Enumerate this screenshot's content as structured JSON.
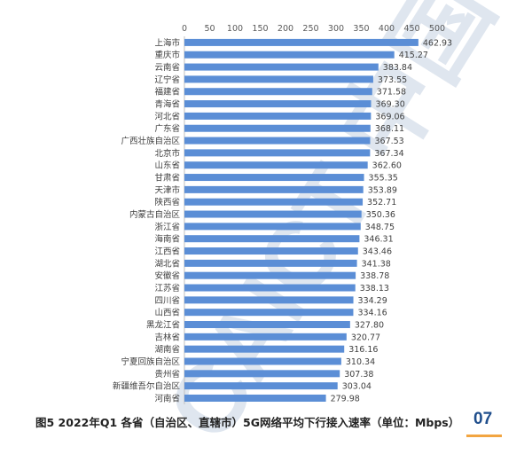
{
  "chart_data": {
    "type": "bar",
    "orientation": "horizontal",
    "categories": [
      "上海市",
      "重庆市",
      "云南省",
      "辽宁省",
      "福建省",
      "青海省",
      "河北省",
      "广东省",
      "广西壮族自治区",
      "北京市",
      "山东省",
      "甘肃省",
      "天津市",
      "陕西省",
      "内蒙古自治区",
      "浙江省",
      "海南省",
      "江西省",
      "湖北省",
      "安徽省",
      "江苏省",
      "四川省",
      "山西省",
      "黑龙江省",
      "吉林省",
      "湖南省",
      "宁夏回族自治区",
      "贵州省",
      "新疆维吾尔自治区",
      "河南省"
    ],
    "values": [
      462.93,
      415.27,
      383.84,
      373.55,
      371.58,
      369.3,
      369.06,
      368.11,
      367.53,
      367.34,
      362.6,
      355.35,
      353.89,
      352.71,
      350.36,
      348.75,
      346.31,
      343.46,
      341.38,
      338.78,
      338.13,
      334.29,
      334.16,
      327.8,
      320.77,
      316.16,
      310.34,
      307.38,
      303.04,
      279.98
    ],
    "value_labels": [
      "462.93",
      "415.27",
      "383.84",
      "373.55",
      "371.58",
      "369.30",
      "369.06",
      "368.11",
      "367.53",
      "367.34",
      "362.60",
      "355.35",
      "353.89",
      "352.71",
      "350.36",
      "348.75",
      "346.31",
      "343.46",
      "341.38",
      "338.78",
      "338.13",
      "334.29",
      "334.16",
      "327.80",
      "320.77",
      "316.16",
      "310.34",
      "307.38",
      "303.04",
      "279.98"
    ],
    "xlim": [
      0,
      500
    ],
    "x_ticks": [
      "0",
      "50",
      "100",
      "150",
      "200",
      "250",
      "300",
      "350",
      "400",
      "450",
      "500"
    ],
    "x_axis_position": "top",
    "grid": false,
    "bar_color": "#5b8ed6"
  },
  "caption": "图5 2022年Q1 各省（自治区、直辖市）5G网络平均下行接入速率（单位：Mbps）",
  "page_number": "07",
  "watermark": "CAICT 中国"
}
